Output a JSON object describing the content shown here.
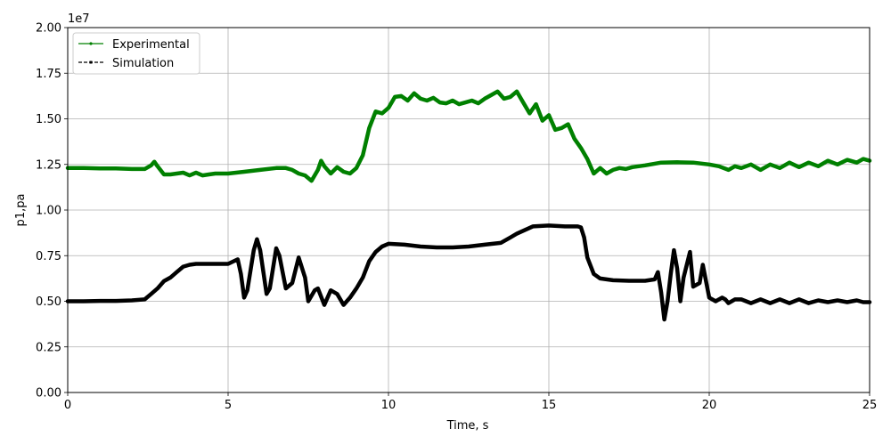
{
  "chart_data": {
    "type": "line",
    "xlabel": "Time, s",
    "ylabel": "p1,pa",
    "y_offset_label": "1e7",
    "xlim": [
      0,
      25
    ],
    "ylim": [
      0,
      20000000
    ],
    "x_ticks": [
      0,
      5,
      10,
      15,
      20,
      25
    ],
    "x_tick_labels": [
      "0",
      "5",
      "10",
      "15",
      "20",
      "25"
    ],
    "y_ticks": [
      0,
      2500000,
      5000000,
      7500000,
      10000000,
      12500000,
      15000000,
      17500000,
      20000000
    ],
    "y_tick_labels": [
      "0.00",
      "0.25",
      "0.50",
      "0.75",
      "1.00",
      "1.25",
      "1.50",
      "1.75",
      "2.00"
    ],
    "grid": true,
    "legend_position": "top-left",
    "series": [
      {
        "name": "Experimental",
        "color": "#008000",
        "style": "solid",
        "x": [
          0,
          0.5,
          1,
          1.5,
          2,
          2.4,
          2.6,
          2.7,
          2.8,
          3.0,
          3.2,
          3.4,
          3.6,
          3.8,
          4.0,
          4.2,
          4.4,
          4.6,
          5.0,
          5.5,
          6.0,
          6.5,
          6.8,
          7.0,
          7.2,
          7.4,
          7.6,
          7.8,
          7.9,
          8.0,
          8.2,
          8.4,
          8.6,
          8.8,
          9.0,
          9.2,
          9.4,
          9.6,
          9.8,
          10.0,
          10.2,
          10.4,
          10.6,
          10.8,
          11.0,
          11.2,
          11.4,
          11.6,
          11.8,
          12.0,
          12.2,
          12.4,
          12.6,
          12.8,
          13.0,
          13.2,
          13.4,
          13.6,
          13.8,
          14.0,
          14.2,
          14.4,
          14.6,
          14.8,
          15.0,
          15.2,
          15.4,
          15.6,
          15.8,
          16.0,
          16.2,
          16.4,
          16.6,
          16.8,
          17.0,
          17.2,
          17.4,
          17.6,
          17.8,
          18.0,
          18.5,
          19.0,
          19.5,
          20.0,
          20.3,
          20.6,
          20.8,
          21.0,
          21.3,
          21.6,
          21.9,
          22.2,
          22.5,
          22.8,
          23.1,
          23.4,
          23.7,
          24.0,
          24.3,
          24.6,
          24.8,
          25.0
        ],
        "y": [
          12300000,
          12300000,
          12280000,
          12280000,
          12250000,
          12250000,
          12450000,
          12650000,
          12400000,
          11950000,
          11950000,
          12000000,
          12050000,
          11900000,
          12050000,
          11900000,
          11950000,
          12000000,
          12000000,
          12100000,
          12200000,
          12300000,
          12300000,
          12200000,
          12000000,
          11900000,
          11600000,
          12200000,
          12700000,
          12400000,
          12000000,
          12350000,
          12100000,
          12000000,
          12300000,
          13000000,
          14500000,
          15400000,
          15300000,
          15600000,
          16200000,
          16250000,
          16000000,
          16400000,
          16100000,
          16000000,
          16150000,
          15900000,
          15850000,
          16000000,
          15800000,
          15900000,
          16000000,
          15850000,
          16100000,
          16300000,
          16500000,
          16100000,
          16200000,
          16500000,
          15900000,
          15300000,
          15800000,
          14900000,
          15200000,
          14400000,
          14500000,
          14700000,
          13900000,
          13400000,
          12800000,
          12000000,
          12300000,
          12000000,
          12200000,
          12300000,
          12250000,
          12350000,
          12400000,
          12450000,
          12600000,
          12620000,
          12600000,
          12500000,
          12400000,
          12200000,
          12400000,
          12300000,
          12500000,
          12200000,
          12500000,
          12300000,
          12600000,
          12350000,
          12600000,
          12400000,
          12700000,
          12500000,
          12750000,
          12600000,
          12800000,
          12700000
        ]
      },
      {
        "name": "Simulation",
        "color": "#000000",
        "style": "dashed",
        "x": [
          0,
          0.5,
          1.0,
          1.5,
          2.0,
          2.4,
          2.6,
          2.8,
          3.0,
          3.2,
          3.4,
          3.6,
          3.8,
          4.0,
          4.5,
          5.0,
          5.3,
          5.4,
          5.5,
          5.6,
          5.8,
          5.9,
          6.0,
          6.2,
          6.3,
          6.5,
          6.6,
          6.8,
          7.0,
          7.2,
          7.4,
          7.5,
          7.7,
          7.8,
          8.0,
          8.2,
          8.4,
          8.6,
          8.8,
          9.0,
          9.2,
          9.4,
          9.6,
          9.8,
          10.0,
          10.5,
          11.0,
          11.5,
          12.0,
          12.5,
          13.0,
          13.5,
          13.8,
          14.0,
          14.5,
          15.0,
          15.5,
          15.9,
          16.0,
          16.1,
          16.2,
          16.4,
          16.6,
          17.0,
          17.5,
          18.0,
          18.3,
          18.4,
          18.5,
          18.6,
          18.7,
          18.8,
          18.9,
          19.0,
          19.1,
          19.2,
          19.4,
          19.5,
          19.7,
          19.8,
          20.0,
          20.2,
          20.4,
          20.5,
          20.6,
          20.8,
          21.0,
          21.3,
          21.6,
          21.9,
          22.2,
          22.5,
          22.8,
          23.1,
          23.4,
          23.7,
          24.0,
          24.3,
          24.6,
          24.8,
          25.0
        ],
        "y": [
          5000000,
          5000000,
          5020000,
          5020000,
          5050000,
          5100000,
          5400000,
          5700000,
          6100000,
          6300000,
          6600000,
          6900000,
          7000000,
          7050000,
          7050000,
          7050000,
          7300000,
          6500000,
          5200000,
          5600000,
          7800000,
          8400000,
          7800000,
          5400000,
          5700000,
          7900000,
          7500000,
          5700000,
          6000000,
          7400000,
          6300000,
          5000000,
          5600000,
          5700000,
          4800000,
          5600000,
          5400000,
          4800000,
          5200000,
          5700000,
          6300000,
          7200000,
          7700000,
          8000000,
          8150000,
          8100000,
          8000000,
          7950000,
          7950000,
          8000000,
          8100000,
          8200000,
          8500000,
          8700000,
          9100000,
          9150000,
          9100000,
          9100000,
          9050000,
          8500000,
          7400000,
          6500000,
          6250000,
          6150000,
          6120000,
          6120000,
          6200000,
          6600000,
          5500000,
          4000000,
          5000000,
          6500000,
          7800000,
          6800000,
          5000000,
          6300000,
          7700000,
          5800000,
          6000000,
          7000000,
          5200000,
          5000000,
          5200000,
          5100000,
          4900000,
          5100000,
          5100000,
          4900000,
          5100000,
          4900000,
          5100000,
          4900000,
          5100000,
          4900000,
          5050000,
          4950000,
          5050000,
          4950000,
          5050000,
          4950000,
          4950000
        ]
      }
    ]
  }
}
